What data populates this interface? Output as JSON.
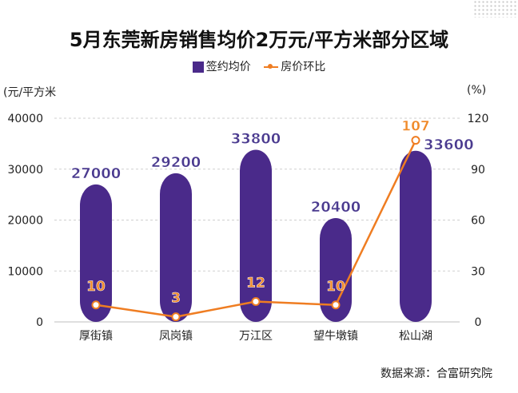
{
  "title": "5月东莞新房销售均价2万元/平方米部分区域",
  "legend": {
    "bar_label": "签约均价",
    "line_label": "房价环比"
  },
  "units": {
    "left": "(元/平方米",
    "right": "(%)"
  },
  "source": "数据来源：合富研究院",
  "colors": {
    "bar": "#4a2a8a",
    "bar_label": "#4a3a8f",
    "line": "#ef7d22",
    "line_label": "#f08a2a"
  },
  "chart_data": {
    "type": "bar",
    "categories": [
      "厚街镇",
      "凤岗镇",
      "万江区",
      "望牛墩镇",
      "松山湖"
    ],
    "series": [
      {
        "name": "签约均价",
        "type": "bar",
        "axis": "left",
        "values": [
          27000,
          29200,
          33800,
          20400,
          33600
        ]
      },
      {
        "name": "房价环比",
        "type": "line",
        "axis": "right",
        "values": [
          10,
          3,
          12,
          10,
          107
        ]
      }
    ],
    "y_left": {
      "min": 0,
      "max": 40000,
      "ticks": [
        "0",
        "10000",
        "20000",
        "30000",
        "40000"
      ]
    },
    "y_right": {
      "min": 0,
      "max": 120,
      "ticks": [
        "0",
        "30",
        "60",
        "90",
        "120"
      ]
    },
    "grid": true,
    "legend_position": "top"
  }
}
